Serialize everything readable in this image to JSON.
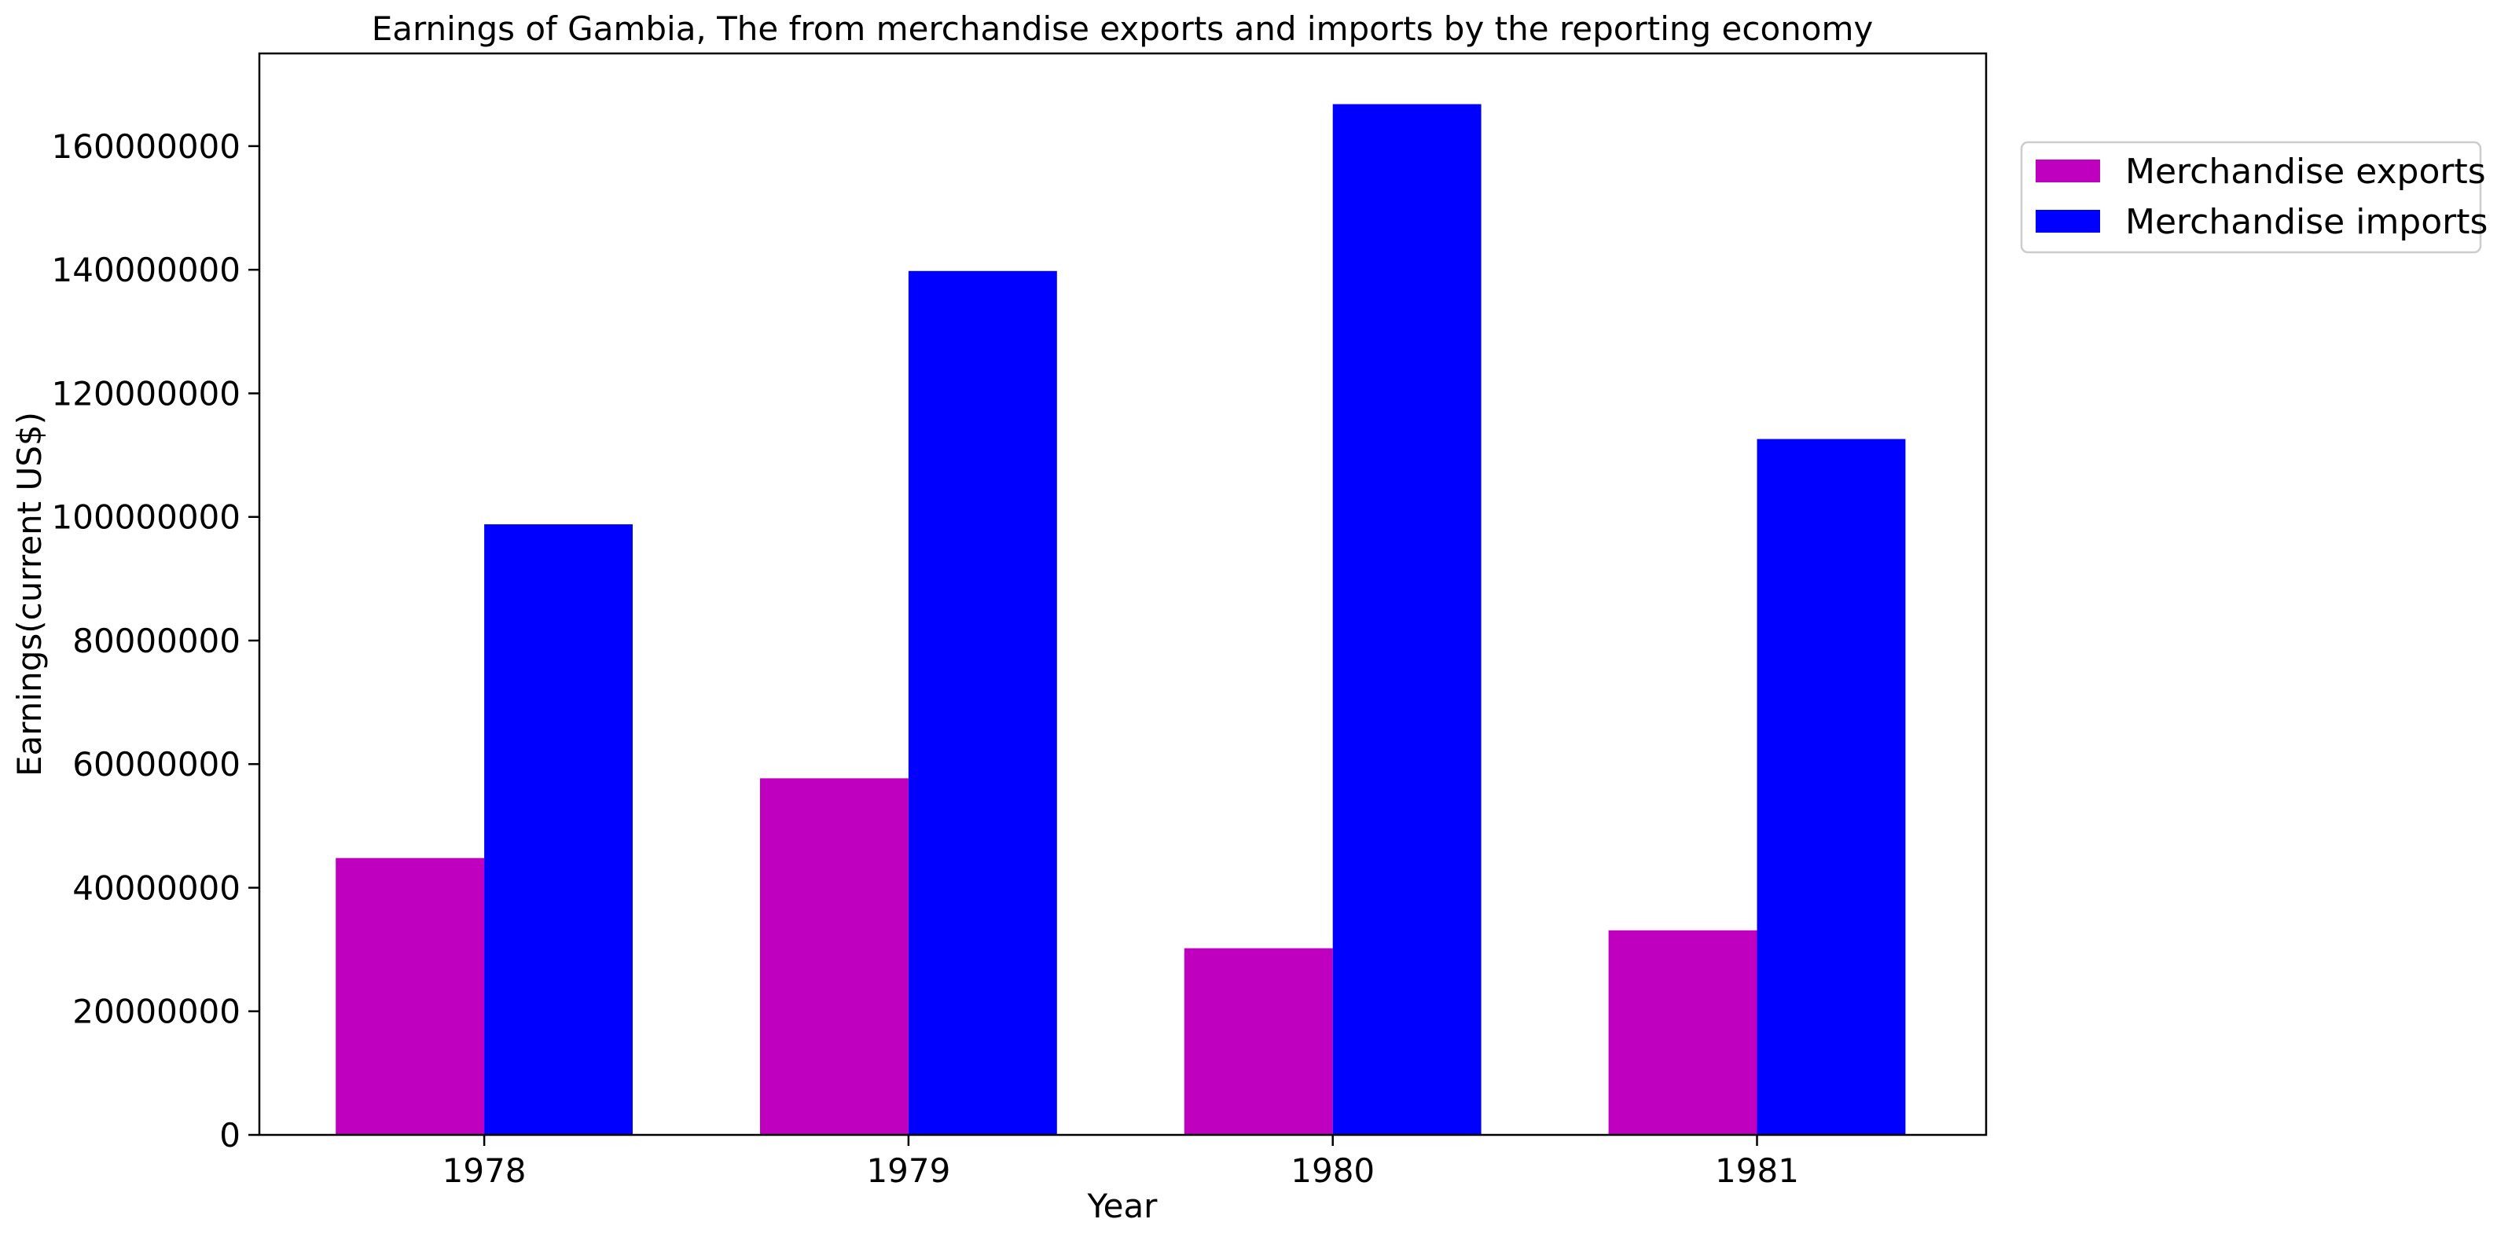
{
  "chart_data": {
    "type": "bar",
    "title": "Earnings of Gambia, The from merchandise exports and imports by the reporting economy",
    "xlabel": "Year",
    "ylabel": "Earnings(current US$)",
    "categories": [
      "1978",
      "1979",
      "1980",
      "1981"
    ],
    "series": [
      {
        "name": "Merchandise exports",
        "color": "#bf00bf",
        "values": [
          44800000,
          57700000,
          30200000,
          33100000
        ]
      },
      {
        "name": "Merchandise imports",
        "color": "#0000ff",
        "values": [
          98800000,
          139800000,
          166800000,
          112600000
        ]
      }
    ],
    "ylim": [
      0,
      175000000
    ],
    "yticks": [
      0,
      20000000,
      40000000,
      60000000,
      80000000,
      100000000,
      120000000,
      140000000,
      160000000
    ],
    "ytick_labels": [
      "0",
      "20000000",
      "40000000",
      "60000000",
      "80000000",
      "100000000",
      "120000000",
      "140000000",
      "160000000"
    ],
    "legend_position": "upper-right-outside",
    "grid": false
  }
}
